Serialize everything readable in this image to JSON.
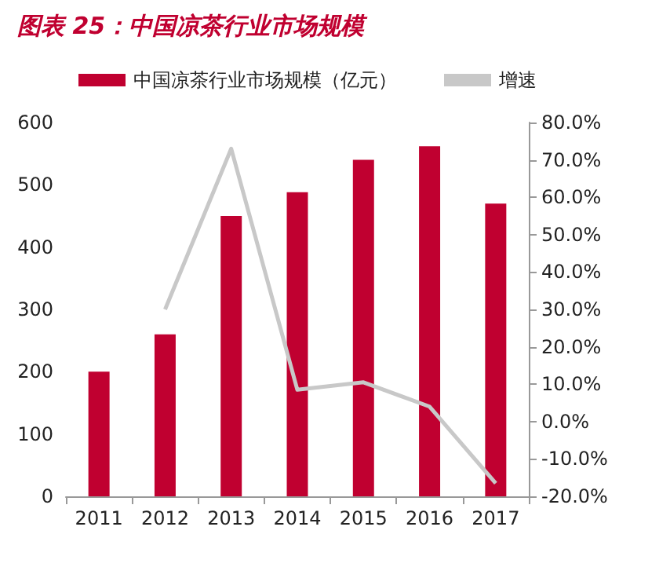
{
  "chart_data": {
    "type": "bar",
    "title": "图表 25：中国凉茶行业市场规模",
    "categories": [
      "2011",
      "2012",
      "2013",
      "2014",
      "2015",
      "2016",
      "2017"
    ],
    "series": [
      {
        "name": "中国凉茶行业市场规模（亿元）",
        "color": "#c00030",
        "values": [
          200,
          260,
          450,
          488,
          540,
          562,
          470
        ]
      },
      {
        "name": "增速",
        "type": "line",
        "axis": "y2",
        "color": "#c8c8c8",
        "values": [
          null,
          30,
          73,
          8.5,
          10.5,
          4,
          -16.5
        ]
      }
    ],
    "ylim": [
      0,
      600
    ],
    "yticks": [
      0,
      100,
      200,
      300,
      400,
      500,
      600
    ],
    "y2lim": [
      -20,
      80
    ],
    "y2ticks": [
      {
        "value": -20,
        "label": "-20.0%"
      },
      {
        "value": -10,
        "label": "-10.0%"
      },
      {
        "value": 0,
        "label": "0.0%"
      },
      {
        "value": 10,
        "label": "10.0%"
      },
      {
        "value": 20,
        "label": "20.0%"
      },
      {
        "value": 30,
        "label": "30.0%"
      },
      {
        "value": 40,
        "label": "40.0%"
      },
      {
        "value": 50,
        "label": "50.0%"
      },
      {
        "value": 60,
        "label": "60.0%"
      },
      {
        "value": 70,
        "label": "70.0%"
      },
      {
        "value": 80,
        "label": "80.0%"
      }
    ],
    "grid": false,
    "legend": "top",
    "marker": "none"
  }
}
